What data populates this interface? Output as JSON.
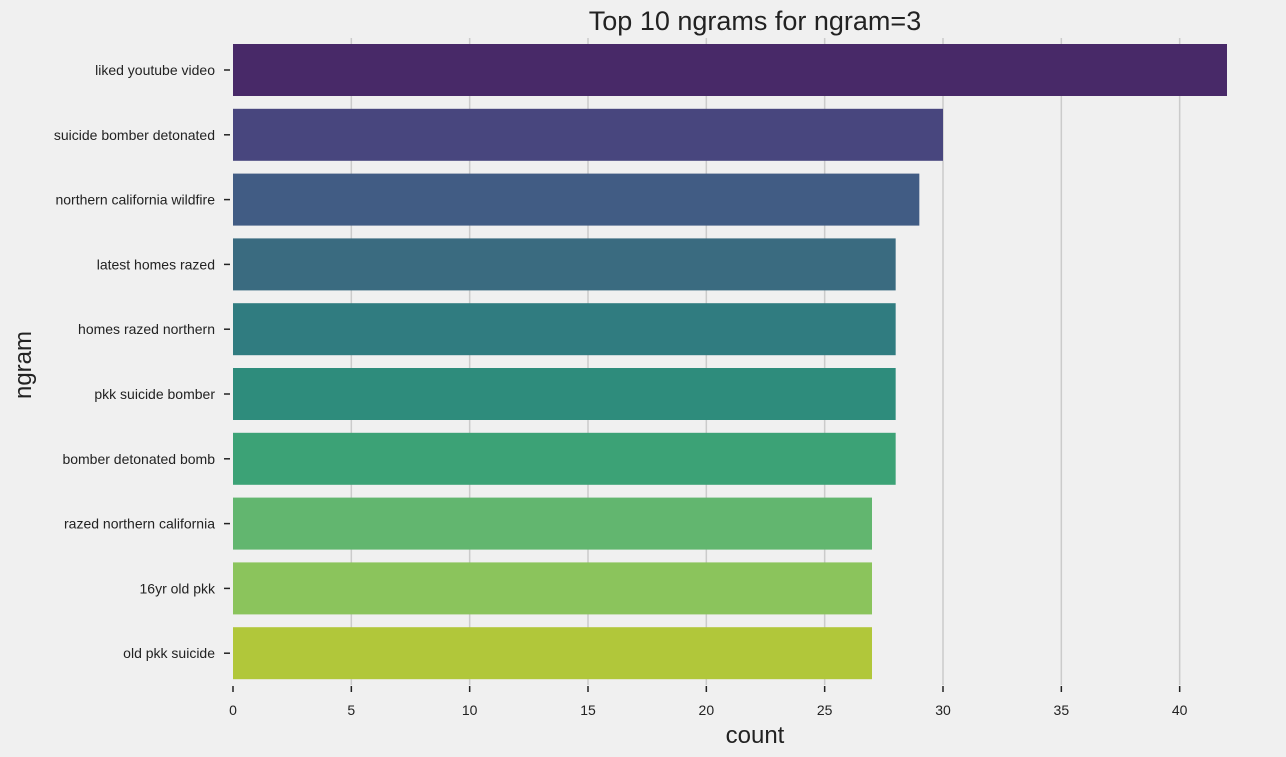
{
  "chart_data": {
    "type": "bar",
    "orientation": "horizontal",
    "title": "Top 10 ngrams for ngram=3",
    "xlabel": "count",
    "ylabel": "ngram",
    "xlim": [
      0,
      42
    ],
    "x_ticks": [
      0,
      5,
      10,
      15,
      20,
      25,
      30,
      35,
      40
    ],
    "grid": "vertical",
    "categories": [
      "liked youtube video",
      "suicide bomber detonated",
      "northern california wildfire",
      "latest homes razed",
      "homes razed northern",
      "pkk suicide bomber",
      "bomber detonated bomb",
      "razed northern california",
      "16yr old pkk",
      "old pkk suicide"
    ],
    "values": [
      42,
      30,
      29,
      28,
      28,
      28,
      28,
      27,
      27,
      27
    ],
    "colors": [
      "#482968",
      "#48467e",
      "#415c84",
      "#3a6b80",
      "#307c80",
      "#2e8c7c",
      "#3ca276",
      "#62b66f",
      "#8bc45c",
      "#b1c73a"
    ],
    "background": "#f0f0f0",
    "plot_background": "#f0f0f0",
    "grid_color": "#cbcbcb"
  }
}
